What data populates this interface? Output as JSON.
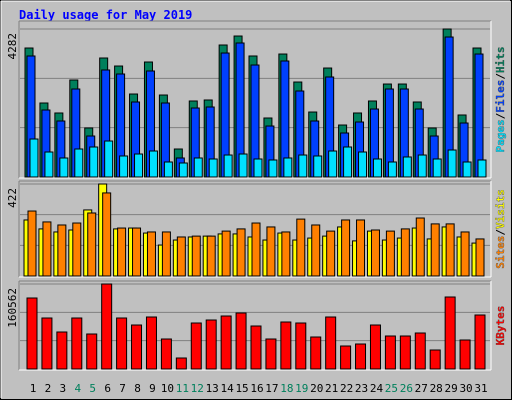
{
  "chart_data": [
    {
      "type": "bar",
      "title": "Daily usage for May 2019",
      "legend_separator": "/",
      "series": [
        {
          "name": "Hits",
          "color": "#00805c",
          "values": [
            3732,
            2141,
            1852,
            2806,
            1418,
            3443,
            3211,
            2401,
            3327,
            2372,
            810,
            2199,
            2228,
            3819,
            4079,
            3501,
            1707,
            3558,
            2748,
            1880,
            3153,
            1504,
            1852,
            2199,
            2690,
            2690,
            2170,
            1418,
            4282,
            1794,
            3732
          ]
        },
        {
          "name": "Files",
          "color": "#0040ff",
          "values": [
            3501,
            1938,
            1620,
            2546,
            1186,
            3096,
            2980,
            2170,
            3067,
            2141,
            550,
            1996,
            2025,
            3587,
            3877,
            3240,
            1475,
            3356,
            2488,
            1620,
            2893,
            1273,
            1591,
            1967,
            2546,
            2546,
            1967,
            1186,
            4050,
            1562,
            3558
          ]
        },
        {
          "name": "Pages",
          "color": "#00e0ff",
          "values": [
            1099,
            723,
            550,
            810,
            868,
            1041,
            608,
            665,
            752,
            434,
            405,
            550,
            521,
            636,
            665,
            521,
            492,
            550,
            636,
            608,
            752,
            868,
            723,
            521,
            434,
            579,
            636,
            521,
            781,
            434,
            492
          ]
        }
      ],
      "ylim": [
        0,
        4282
      ],
      "yticks": [
        4282
      ]
    },
    {
      "type": "bar",
      "series": [
        {
          "name": "Visits",
          "color": "#ffff00",
          "values": [
            257,
            216,
            202,
            211,
            303,
            422,
            216,
            220,
            197,
            142,
            165,
            179,
            183,
            193,
            193,
            179,
            165,
            197,
            165,
            174,
            183,
            225,
            161,
            206,
            165,
            174,
            220,
            170,
            225,
            179,
            151
          ]
        },
        {
          "name": "Sites",
          "color": "#ff8000",
          "values": [
            298,
            248,
            234,
            243,
            289,
            381,
            220,
            220,
            202,
            202,
            179,
            183,
            183,
            206,
            216,
            243,
            225,
            202,
            261,
            234,
            206,
            257,
            257,
            211,
            206,
            216,
            266,
            239,
            239,
            202,
            170
          ]
        }
      ],
      "ylim": [
        0,
        422
      ],
      "yticks": [
        422
      ]
    },
    {
      "type": "bar",
      "categories": [
        "1",
        "2",
        "3",
        "4",
        "5",
        "6",
        "7",
        "8",
        "9",
        "10",
        "11",
        "12",
        "13",
        "14",
        "15",
        "16",
        "17",
        "18",
        "19",
        "20",
        "21",
        "22",
        "23",
        "24",
        "25",
        "26",
        "27",
        "28",
        "29",
        "30",
        "31"
      ],
      "category_colors": [
        "#000000",
        "#000000",
        "#000000",
        "#00805c",
        "#00805c",
        "#000000",
        "#000000",
        "#000000",
        "#000000",
        "#000000",
        "#00805c",
        "#00805c",
        "#000000",
        "#000000",
        "#000000",
        "#000000",
        "#000000",
        "#00805c",
        "#00805c",
        "#000000",
        "#000000",
        "#000000",
        "#000000",
        "#000000",
        "#00805c",
        "#00805c",
        "#000000",
        "#000000",
        "#000000",
        "#000000",
        "#000000"
      ],
      "series": [
        {
          "name": "KBytes",
          "color": "#ff0000",
          "values": [
            134119,
            96339,
            69893,
            96339,
            66115,
            160562,
            96339,
            83116,
            98228,
            56670,
            20779,
            86894,
            92561,
            100117,
            105784,
            81227,
            56670,
            88783,
            86894,
            60448,
            98228,
            43447,
            47225,
            83116,
            62337,
            62337,
            68004,
            35891,
            136008,
            54781,
            102006
          ]
        }
      ],
      "ylim": [
        0,
        160562
      ],
      "yticks": [
        160562
      ]
    }
  ]
}
